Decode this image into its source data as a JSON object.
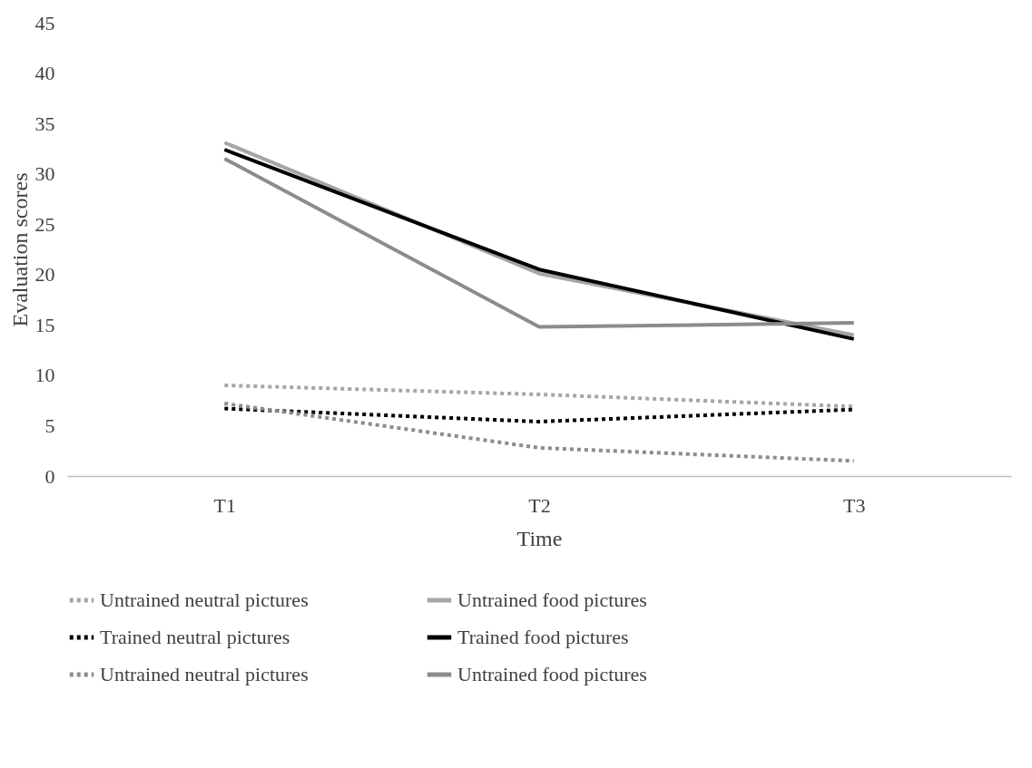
{
  "chart_data": {
    "type": "line",
    "xlabel": "Time",
    "ylabel": "Evaluation scores",
    "categories": [
      "T1",
      "T2",
      "T3"
    ],
    "ylim": [
      0,
      45
    ],
    "yticks": [
      0,
      5,
      10,
      15,
      20,
      25,
      30,
      35,
      40,
      45
    ],
    "grid": false,
    "legend": "bottom",
    "marker": "none",
    "series": [
      {
        "name": "Untrained neutral pictures",
        "color": "#a5a5a5",
        "line_style": "dotted",
        "values": [
          9.0,
          8.1,
          6.9
        ]
      },
      {
        "name": "Untrained food pictures",
        "color": "#a5a5a5",
        "line_style": "solid",
        "values": [
          33.1,
          20.1,
          14.0
        ]
      },
      {
        "name": "Trained neutral pictures",
        "color": "#000000",
        "line_style": "dotted",
        "values": [
          6.7,
          5.4,
          6.6
        ]
      },
      {
        "name": "Trained food pictures",
        "color": "#000000",
        "line_style": "solid",
        "values": [
          32.4,
          20.5,
          13.6
        ]
      },
      {
        "name": "Untrained neutral pictures",
        "color": "#8c8c8c",
        "line_style": "dotted",
        "values": [
          7.2,
          2.8,
          1.5
        ]
      },
      {
        "name": "Untrained food pictures",
        "color": "#8c8c8c",
        "line_style": "solid",
        "values": [
          31.5,
          14.8,
          15.2
        ]
      }
    ]
  }
}
